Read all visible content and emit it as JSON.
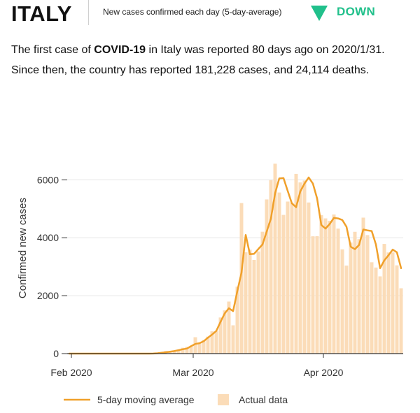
{
  "header": {
    "country": "ITALY",
    "metric": "New cases confirmed each day (5-day-average)",
    "trend_icon": "down-triangle-icon",
    "trend": "DOWN",
    "trend_color": "#21c08b"
  },
  "summary": {
    "p1": "The first case of ",
    "disease": "COVID-19",
    "p2": " in Italy was reported 80 days ago on 2020/1/31. Since then, the country has reported 181,228 cases, and 24,114 deaths."
  },
  "chart_data": {
    "type": "bar",
    "title": "",
    "xlabel": "",
    "ylabel": "Confirmed new cases",
    "ylim": [
      0,
      6900
    ],
    "yticks": [
      0,
      2000,
      4000,
      6000
    ],
    "ytick_labels": [
      "0",
      "2000",
      "4000",
      "6000"
    ],
    "xticks": [
      {
        "label": "Feb 2020",
        "day_index": 1
      },
      {
        "label": "Mar 2020",
        "day_index": 30
      },
      {
        "label": "Apr 2020",
        "day_index": 61
      }
    ],
    "start_date": "2020-01-31",
    "grid": true,
    "legend": {
      "position": "bottom",
      "line_label": "5-day moving average",
      "bar_label": "Actual data"
    },
    "colors": {
      "bars": "#fbdcb8",
      "line": "#f0a02a",
      "grid": "#e6e6e6",
      "axis": "#333333"
    },
    "series": [
      {
        "name": "Actual data",
        "values": [
          0,
          0,
          0,
          0,
          0,
          0,
          0,
          1,
          0,
          0,
          0,
          0,
          0,
          0,
          0,
          0,
          0,
          0,
          0,
          0,
          0,
          17,
          42,
          93,
          74,
          93,
          131,
          202,
          233,
          240,
          566,
          342,
          466,
          587,
          769,
          778,
          1247,
          1492,
          1797,
          977,
          2313,
          5198,
          3497,
          3590,
          3233,
          3526,
          4207,
          5322,
          5986,
          6557,
          5560,
          4789,
          5249,
          5210,
          6203,
          5909,
          5974,
          5217,
          4050,
          4053,
          4782,
          4668,
          4585,
          4805,
          4316,
          3599,
          3039,
          3836,
          4204,
          3951,
          4694,
          4092,
          3153,
          2972,
          2667,
          3786,
          3493,
          3491,
          3047,
          2256
        ],
        "ma5": [
          0,
          0,
          0,
          0,
          0,
          0,
          0.2,
          0.2,
          0.2,
          0.2,
          0.2,
          0,
          0,
          0,
          0,
          0,
          0,
          0,
          0,
          0,
          3,
          12,
          30,
          45,
          64,
          87,
          119,
          150,
          174,
          256,
          334,
          359,
          427,
          550,
          656,
          783,
          1092,
          1387,
          1566,
          1467,
          2151,
          2797,
          4096,
          3430,
          3444,
          3609,
          3766,
          4213,
          4658,
          5535,
          6051,
          6062,
          5617,
          5185,
          5055,
          5600,
          5870,
          6079,
          5869,
          5357,
          4441,
          4316,
          4476,
          4685,
          4667,
          4612,
          4380,
          3690,
          3605,
          3751,
          4285,
          4254,
          4232,
          3770,
          2947,
          3218,
          3394,
          3589,
          3497,
          2947
        ],
        "ma5_days": []
      }
    ]
  }
}
